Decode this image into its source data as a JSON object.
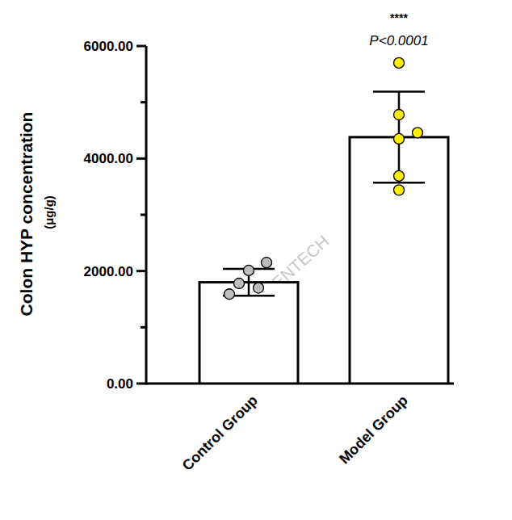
{
  "chart_data": {
    "type": "bar",
    "ylabel": "Colon HYP concentration",
    "ylabel_unit": "(μg/g)",
    "categories": [
      "Control Group",
      "Model Group"
    ],
    "values": [
      1800,
      4380
    ],
    "errors": [
      240,
      810
    ],
    "colors": [
      "#ffffff",
      "#ffffff"
    ],
    "points": [
      {
        "values": [
          1590,
          2010,
          2150,
          1780,
          1700
        ],
        "color": "#bdbdbd"
      },
      {
        "values": [
          5700,
          4780,
          4460,
          4350,
          3690,
          3440
        ],
        "color": "#ffee00"
      }
    ],
    "ylim": [
      0,
      6000
    ],
    "yticks": [
      {
        "value": 0,
        "label": "0.00"
      },
      {
        "value": 2000,
        "label": "2000.00"
      },
      {
        "value": 4000,
        "label": "4000.00"
      },
      {
        "value": 6000,
        "label": "6000.00"
      }
    ],
    "grid": false,
    "annotations": [
      {
        "category": 1,
        "stars": "****",
        "text": "P<0.0001"
      }
    ],
    "watermark": "GREENTECH"
  }
}
